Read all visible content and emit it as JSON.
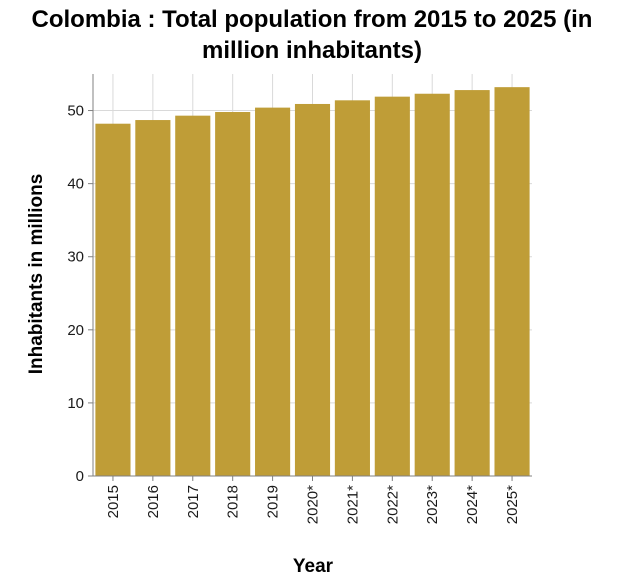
{
  "chart_data": {
    "type": "bar",
    "title": "Colombia : Total population from 2015 to 2025 (in million inhabitants)",
    "xlabel": "Year",
    "ylabel": "Inhabitants in millions",
    "categories": [
      "2015",
      "2016",
      "2017",
      "2018",
      "2019",
      "2020*",
      "2021*",
      "2022*",
      "2023*",
      "2024*",
      "2025*"
    ],
    "values": [
      48.2,
      48.7,
      49.3,
      49.8,
      50.4,
      50.9,
      51.4,
      51.9,
      52.3,
      52.8,
      53.2
    ],
    "ylim": [
      0,
      55
    ],
    "yticks": [
      0,
      10,
      20,
      30,
      40,
      50
    ],
    "grid": true,
    "bar_color": "#bf9d37",
    "grid_color": "#d9d9d9",
    "axis_color": "#808080"
  }
}
